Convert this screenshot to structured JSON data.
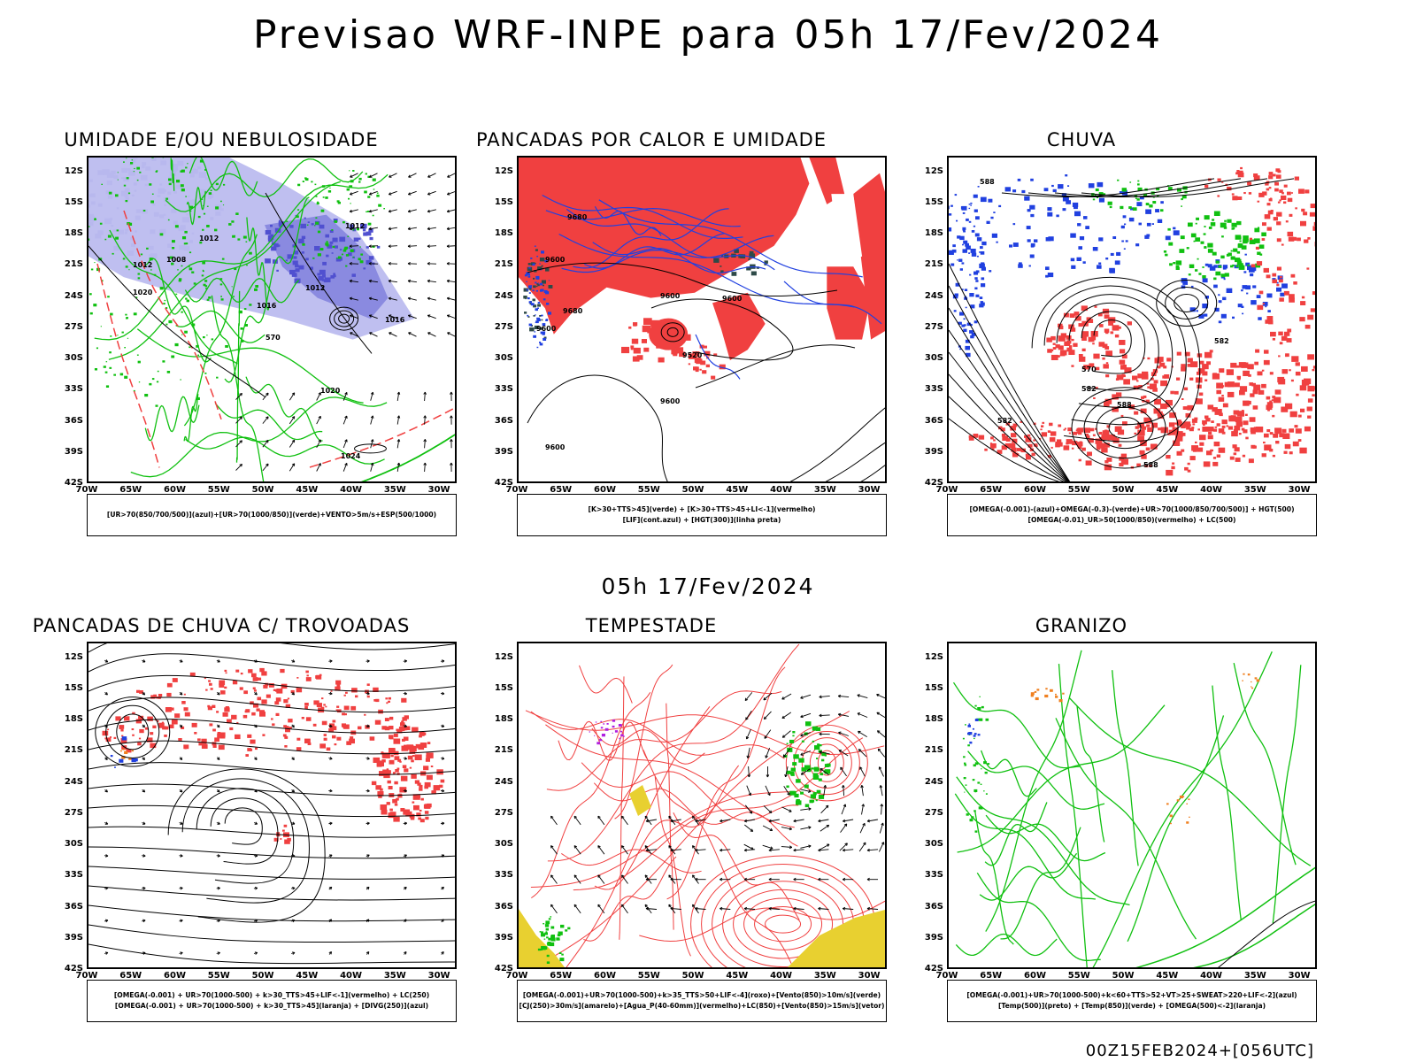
{
  "title": "Previsao WRF-INPE  para 05h 17/Fev/2024",
  "mid_title": "05h 17/Fev/2024",
  "footer": "00Z15FEB2024+[056UTC]",
  "axes": {
    "lat_labels": [
      "12S",
      "15S",
      "18S",
      "21S",
      "24S",
      "27S",
      "30S",
      "33S",
      "36S",
      "39S",
      "42S"
    ],
    "lon_labels": [
      "70W",
      "65W",
      "60W",
      "55W",
      "50W",
      "45W",
      "40W",
      "35W",
      "30W"
    ]
  },
  "panels": [
    {
      "title": "UMIDADE E/OU NEBULOSIDADE",
      "legend": [
        "[UR>70(850/700/500)](azul)+[UR>70(1000/850)](verde)+VENTO>5m/s+ESP(500/1000)"
      ],
      "labels": [
        "1012",
        "1008",
        "1012",
        "1020",
        "1016",
        "1012",
        "1012",
        "1016",
        "1020",
        "1024",
        "570"
      ]
    },
    {
      "title": "PANCADAS POR CALOR E UMIDADE",
      "legend": [
        "[K>30+TTS>45](verde) + [K>30+TTS>45+LI<-1](vermelho)",
        "[LIF](cont.azul) + [HGT(300)](linha preta)"
      ],
      "labels": [
        "9680",
        "9600",
        "9680",
        "9600",
        "9600",
        "9520",
        "9600",
        "9600",
        "9600"
      ]
    },
    {
      "title": "CHUVA",
      "legend": [
        "[OMEGA(-0.001)-(azul)+OMEGA(-0.3)-(verde)+UR>70(1000/850/700/500)] + HGT(500)",
        "[OMEGA(-0.01)_UR>50(1000/850)(vermelho) + LC(500)"
      ],
      "labels": [
        "588",
        "582",
        "570",
        "582",
        "588",
        "582",
        "588"
      ]
    },
    {
      "title": "PANCADAS DE CHUVA C/ TROVOADAS",
      "legend": [
        "[OMEGA(-0.001) + UR>70(1000-500) + k>30_TTS>45+LIF<-1](vermelho) + LC(250)",
        "[OMEGA(-0.001) + UR>70(1000-500) + k>30_TTS>45](laranja) + [DIVG(250)](azul)"
      ],
      "labels": []
    },
    {
      "title": "TEMPESTADE",
      "legend": [
        "[OMEGA(-0.001)+UR>70(1000-500)+k>35_TTS>50+LIF<-4](roxo)+[Vento(850)>10m/s](verde)",
        "[CJ(250)>30m/s](amarelo)+[Agua_P(40-60mm)](vermelho)+LC(850)+[Vento(850)>15m/s](vetor)"
      ],
      "labels": []
    },
    {
      "title": "GRANIZO",
      "legend": [
        "[OMEGA(-0.001)+UR>70(1000-500)+k<60+TTS>52+VT>25+SWEAT>220+LIF<-2](azul)",
        "[Temp(500)](preto) + [Temp(850)](verde) + [OMEGA(500)<-2](laranja)"
      ],
      "labels": []
    }
  ],
  "colors": {
    "red": "#f04040",
    "blue": "#2040e0",
    "green": "#10c010",
    "lightblue": "#b8b8ee",
    "midblue": "#8a8ae0",
    "yellow": "#e8d030",
    "orange": "#f08020",
    "purple": "#b020e0",
    "darkteal": "#2e4a48"
  }
}
